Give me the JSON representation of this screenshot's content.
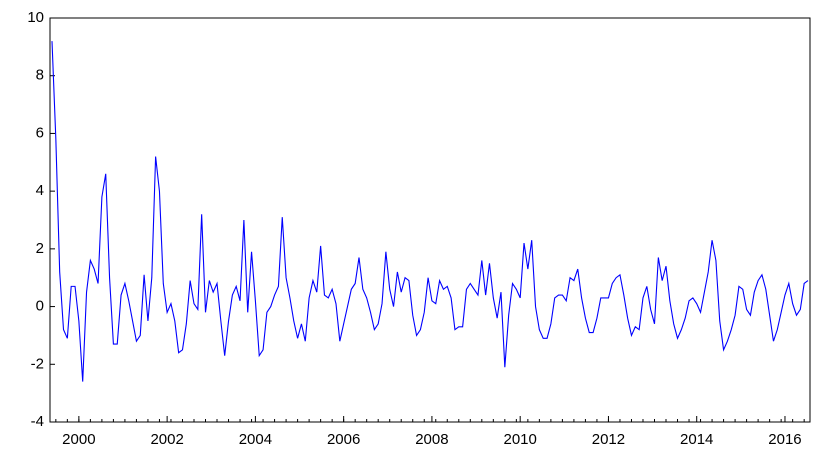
{
  "chart_data": {
    "type": "line",
    "categories": [
      null,
      null,
      null,
      null,
      null,
      null,
      null,
      "2000",
      null,
      null,
      null,
      null,
      null,
      null,
      null,
      null,
      null,
      null,
      null,
      null,
      null,
      null,
      null,
      null,
      null,
      null,
      null,
      null,
      null,
      null,
      "2002",
      null,
      null,
      null,
      null,
      null,
      null,
      null,
      null,
      null,
      null,
      null,
      null,
      null,
      null,
      null,
      null,
      null,
      null,
      null,
      null,
      null,
      null,
      "2004",
      null,
      null,
      null,
      null,
      null,
      null,
      null,
      null,
      null,
      null,
      null,
      null,
      null,
      null,
      null,
      null,
      null,
      null,
      null,
      null,
      null,
      null,
      "2006",
      null,
      null,
      null,
      null,
      null,
      null,
      null,
      null,
      null,
      null,
      null,
      null,
      null,
      null,
      null,
      null,
      null,
      null,
      null,
      null,
      null,
      null,
      "2008",
      null,
      null,
      null,
      null,
      null,
      null,
      null,
      null,
      null,
      null,
      null,
      null,
      null,
      null,
      null,
      null,
      null,
      null,
      null,
      null,
      null,
      null,
      "2010",
      null,
      null,
      null,
      null,
      null,
      null,
      null,
      null,
      null,
      null,
      null,
      null,
      null,
      null,
      null,
      null,
      null,
      null,
      null,
      null,
      null,
      null,
      "2012",
      null,
      null,
      null,
      null,
      null,
      null,
      null,
      null,
      null,
      null,
      null,
      null,
      null,
      null,
      null,
      null,
      null,
      null,
      null,
      null,
      null,
      null,
      "2014",
      null,
      null,
      null,
      null,
      null,
      null,
      null,
      null,
      null,
      null,
      null,
      null,
      null,
      null,
      null,
      null,
      null,
      null,
      null,
      null,
      null,
      null,
      "2016",
      null,
      null,
      null,
      null,
      null,
      null
    ],
    "series": [
      {
        "color": "#0000ff",
        "values": [
          9.2,
          5.8,
          1.2,
          -0.8,
          -1.1,
          0.7,
          0.7,
          -0.5,
          -2.6,
          0.5,
          1.6,
          1.3,
          0.8,
          3.8,
          4.6,
          1.0,
          -1.3,
          -1.3,
          0.4,
          0.8,
          0.2,
          -0.5,
          -1.2,
          -1.0,
          1.1,
          -0.5,
          1.0,
          5.2,
          4.0,
          0.8,
          -0.2,
          0.1,
          -0.5,
          -1.6,
          -1.5,
          -0.6,
          0.9,
          0.1,
          -0.1,
          3.2,
          -0.2,
          0.9,
          0.5,
          0.8,
          -0.5,
          -1.7,
          -0.5,
          0.4,
          0.7,
          0.2,
          3.0,
          -0.2,
          1.9,
          0.2,
          -1.7,
          -1.5,
          -0.2,
          0.0,
          0.4,
          0.7,
          3.1,
          1.0,
          0.3,
          -0.5,
          -1.1,
          -0.6,
          -1.2,
          0.3,
          0.9,
          0.5,
          2.1,
          0.4,
          0.3,
          0.6,
          0.1,
          -1.2,
          -0.6,
          0.0,
          0.6,
          0.8,
          1.7,
          0.6,
          0.3,
          -0.2,
          -0.8,
          -0.6,
          0.1,
          1.9,
          0.6,
          0.0,
          1.2,
          0.5,
          1.0,
          0.9,
          -0.3,
          -1.0,
          -0.8,
          -0.2,
          1.0,
          0.2,
          0.1,
          0.9,
          0.6,
          0.7,
          0.3,
          -0.8,
          -0.7,
          -0.7,
          0.6,
          0.8,
          0.6,
          0.4,
          1.6,
          0.4,
          1.5,
          0.3,
          -0.4,
          0.5,
          -2.1,
          -0.3,
          0.8,
          0.6,
          0.3,
          2.2,
          1.3,
          2.3,
          0.0,
          -0.8,
          -1.1,
          -1.1,
          -0.6,
          0.3,
          0.4,
          0.4,
          0.2,
          1.0,
          0.9,
          1.3,
          0.3,
          -0.4,
          -0.9,
          -0.9,
          -0.4,
          0.3,
          0.3,
          0.3,
          0.8,
          1.0,
          1.1,
          0.4,
          -0.4,
          -1.0,
          -0.7,
          -0.8,
          0.3,
          0.7,
          -0.1,
          -0.6,
          1.7,
          0.9,
          1.4,
          0.2,
          -0.6,
          -1.1,
          -0.8,
          -0.4,
          0.2,
          0.3,
          0.1,
          -0.2,
          0.5,
          1.2,
          2.3,
          1.6,
          -0.5,
          -1.5,
          -1.2,
          -0.8,
          -0.3,
          0.7,
          0.6,
          -0.1,
          -0.3,
          0.5,
          0.9,
          1.1,
          0.6,
          -0.3,
          -1.2,
          -0.8,
          -0.2,
          0.4,
          0.8,
          0.1,
          -0.3,
          -0.1,
          0.8,
          0.9
        ]
      }
    ],
    "ylim": [
      -4,
      10
    ],
    "yticks": [
      -4,
      -2,
      0,
      2,
      4,
      6,
      8,
      10
    ],
    "grid": false
  }
}
